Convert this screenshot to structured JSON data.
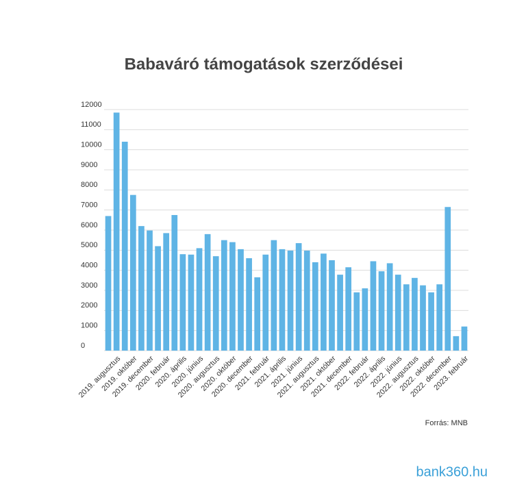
{
  "chart_data": {
    "type": "bar",
    "title": "Babaváró támogatások szerződései",
    "categories": [
      null,
      "2019. augusztus",
      null,
      "2019. október",
      null,
      "2019. december",
      null,
      "2020. február",
      null,
      "2020. április",
      null,
      "2020. június",
      null,
      "2020. augusztus",
      null,
      "2020. október",
      null,
      "2020. december",
      null,
      "2021. február",
      null,
      "2021. április",
      null,
      "2021. június",
      null,
      "2021. augusztus",
      null,
      "2021. október",
      null,
      "2021. december",
      null,
      "2022. február",
      null,
      "2022. április",
      null,
      "2022. június",
      null,
      "2022. augusztus",
      null,
      "2022. október",
      null,
      "2022. december",
      null,
      "2023. február"
    ],
    "values": [
      6700,
      11850,
      10400,
      7750,
      6200,
      5980,
      5200,
      5850,
      6750,
      4800,
      4780,
      5100,
      5800,
      4700,
      5500,
      5400,
      5050,
      4600,
      3650,
      4780,
      5500,
      5050,
      4980,
      5350,
      4980,
      4400,
      4830,
      4500,
      3780,
      4150,
      2900,
      3100,
      4450,
      3950,
      4350,
      3780,
      3300,
      3620,
      3250,
      2900,
      3300,
      7150,
      720,
      1200
    ],
    "color": "#5fb4e5",
    "ylim": [
      0,
      12000
    ],
    "yticks": [
      0,
      1000,
      2000,
      3000,
      4000,
      5000,
      6000,
      7000,
      8000,
      9000,
      10000,
      11000,
      12000
    ],
    "grid": true,
    "source": "Forrás: MNB",
    "logo": "bank360.hu"
  }
}
